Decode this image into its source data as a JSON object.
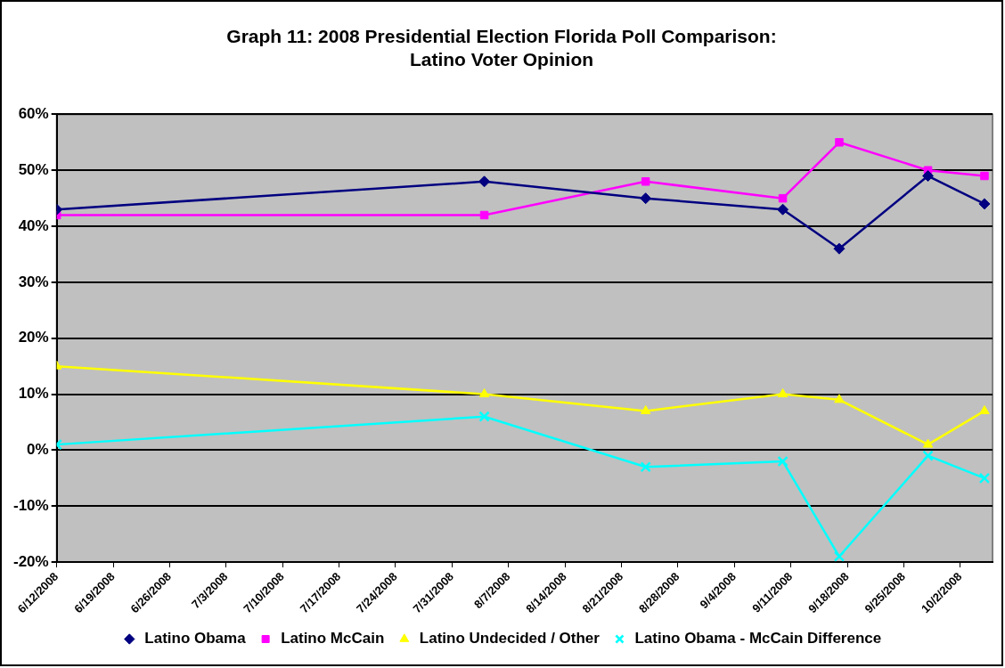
{
  "chart_data": {
    "type": "line",
    "title": "Graph 11: 2008 Presidential Election Florida Poll Comparison:\nLatino Voter Opinion",
    "x": [
      "2008-06-12",
      "2008-08-04",
      "2008-08-24",
      "2008-09-10",
      "2008-09-17",
      "2008-09-28",
      "2008-10-05"
    ],
    "series": [
      {
        "name": "Latino Obama",
        "color": "#000080",
        "marker": "diamond",
        "values": [
          43,
          48,
          45,
          43,
          36,
          49,
          44
        ]
      },
      {
        "name": "Latino McCain",
        "color": "#ff00ff",
        "marker": "square",
        "values": [
          42,
          42,
          48,
          45,
          55,
          50,
          49
        ]
      },
      {
        "name": "Latino Undecided / Other",
        "color": "#ffff00",
        "marker": "triangle",
        "values": [
          15,
          10,
          7,
          10,
          9,
          1,
          7
        ]
      },
      {
        "name": "Latino Obama - McCain Difference",
        "color": "#00ffff",
        "marker": "cross",
        "values": [
          1,
          6,
          -3,
          -2,
          -19,
          -1,
          -5
        ]
      }
    ],
    "xlim": [
      "2008-06-12",
      "2008-10-06"
    ],
    "xticks": [
      {
        "value": "2008-06-12",
        "label": "6/12/2008"
      },
      {
        "value": "2008-06-19",
        "label": "6/19/2008"
      },
      {
        "value": "2008-06-26",
        "label": "6/26/2008"
      },
      {
        "value": "2008-07-03",
        "label": "7/3/2008"
      },
      {
        "value": "2008-07-10",
        "label": "7/10/2008"
      },
      {
        "value": "2008-07-17",
        "label": "7/17/2008"
      },
      {
        "value": "2008-07-24",
        "label": "7/24/2008"
      },
      {
        "value": "2008-07-31",
        "label": "7/31/2008"
      },
      {
        "value": "2008-08-07",
        "label": "8/7/2008"
      },
      {
        "value": "2008-08-14",
        "label": "8/14/2008"
      },
      {
        "value": "2008-08-21",
        "label": "8/21/2008"
      },
      {
        "value": "2008-08-28",
        "label": "8/28/2008"
      },
      {
        "value": "2008-09-04",
        "label": "9/4/2008"
      },
      {
        "value": "2008-09-11",
        "label": "9/11/2008"
      },
      {
        "value": "2008-09-18",
        "label": "9/18/2008"
      },
      {
        "value": "2008-09-25",
        "label": "9/25/2008"
      },
      {
        "value": "2008-10-02",
        "label": "10/2/2008"
      }
    ],
    "ylim": [
      -20,
      60
    ],
    "yticks": [
      {
        "value": -20,
        "label": "-20%"
      },
      {
        "value": -10,
        "label": "-10%"
      },
      {
        "value": 0,
        "label": "0%"
      },
      {
        "value": 10,
        "label": "10%"
      },
      {
        "value": 20,
        "label": "20%"
      },
      {
        "value": 30,
        "label": "30%"
      },
      {
        "value": 40,
        "label": "40%"
      },
      {
        "value": 50,
        "label": "50%"
      },
      {
        "value": 60,
        "label": "60%"
      }
    ],
    "grid": "y",
    "legend": "bottom",
    "line_style": "solid"
  }
}
